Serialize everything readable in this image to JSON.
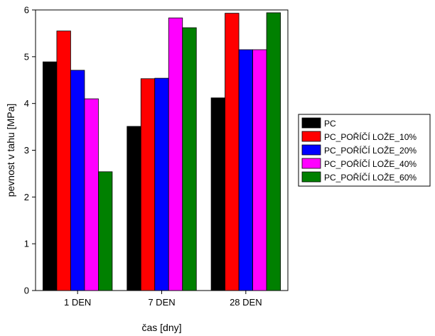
{
  "chart_data": {
    "type": "bar",
    "title": "",
    "xlabel": "čas [dny]",
    "ylabel": "pevnost v tahu [MPa]",
    "ylim": [
      0,
      6
    ],
    "yticks": [
      "0",
      "1",
      "2",
      "3",
      "4",
      "5",
      "6"
    ],
    "grid": false,
    "legend_position": "right",
    "categories": [
      "1 DEN",
      "7 DEN",
      "28 DEN"
    ],
    "series": [
      {
        "name": "PC",
        "color": "#000000",
        "values": [
          4.89,
          3.51,
          4.12
        ]
      },
      {
        "name": "PC_POŘÍČÍ LOŽE_10%",
        "color": "#ff0000",
        "values": [
          5.55,
          4.53,
          5.93
        ]
      },
      {
        "name": "PC_POŘÍČÍ LOŽE_20%",
        "color": "#0000ff",
        "values": [
          4.71,
          4.54,
          5.15
        ]
      },
      {
        "name": "PC_POŘÍČÍ LOŽE_40%",
        "color": "#ff00ff",
        "values": [
          4.1,
          5.83,
          5.15
        ]
      },
      {
        "name": "PC_POŘÍČÍ LOŽE_60%",
        "color": "#008000",
        "values": [
          2.54,
          5.62,
          5.94
        ]
      }
    ]
  }
}
